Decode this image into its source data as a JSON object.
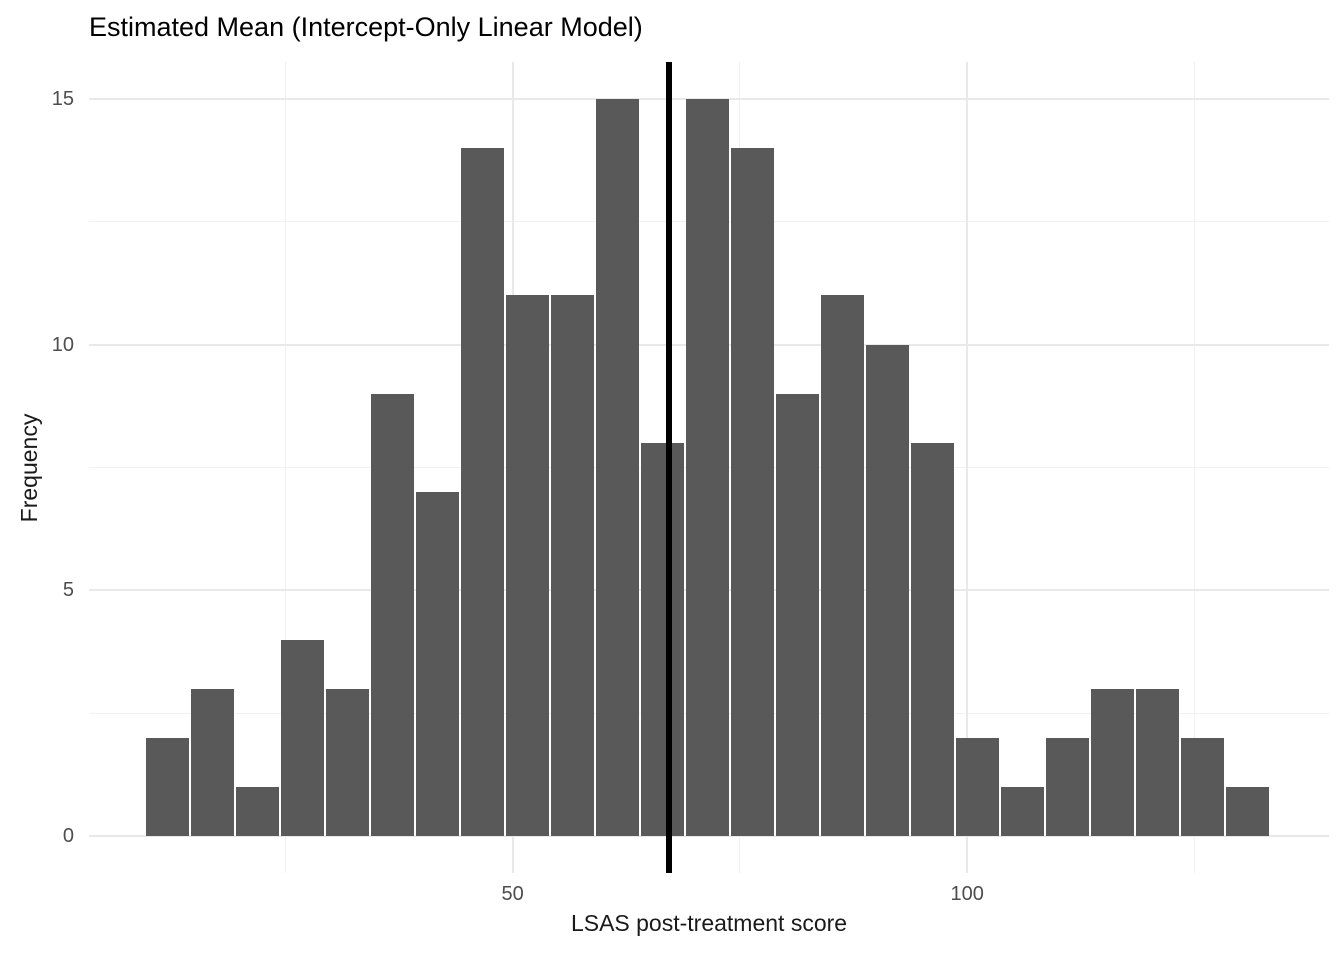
{
  "title": "Estimated Mean (Intercept-Only Linear Model)",
  "chart_data": {
    "type": "bar",
    "subtype": "histogram",
    "title": "Estimated Mean (Intercept-Only Linear Model)",
    "xlabel": "LSAS post-treatment score",
    "ylabel": "Frequency",
    "bin_start": 9.6,
    "bin_width": 4.95,
    "counts": [
      2,
      3,
      1,
      4,
      3,
      9,
      7,
      14,
      11,
      11,
      15,
      8,
      15,
      14,
      9,
      11,
      10,
      8,
      2,
      1,
      2,
      3,
      3,
      2,
      1
    ],
    "vline_x": 67.2,
    "x_major_ticks": [
      50,
      100
    ],
    "x_major_tick_labels": [
      "50",
      "100"
    ],
    "x_minor_gridlines": [
      25,
      75,
      125
    ],
    "y_major_ticks": [
      0,
      5,
      10,
      15
    ],
    "y_major_tick_labels": [
      "0",
      "5",
      "10",
      "15"
    ],
    "y_minor_gridlines": [
      2.5,
      7.5,
      12.5
    ],
    "xlim": [
      3.4,
      139.8
    ],
    "ylim": [
      -0.75,
      15.75
    ],
    "grid": true,
    "legend": false,
    "colors": {
      "bar_fill": "#595959",
      "vline": "#000000",
      "grid_major": "#e9e9e9",
      "grid_minor": "#f1f1f1",
      "tick_label": "#4d4d4d",
      "text": "#1a1a1a",
      "background": "#ffffff"
    }
  }
}
